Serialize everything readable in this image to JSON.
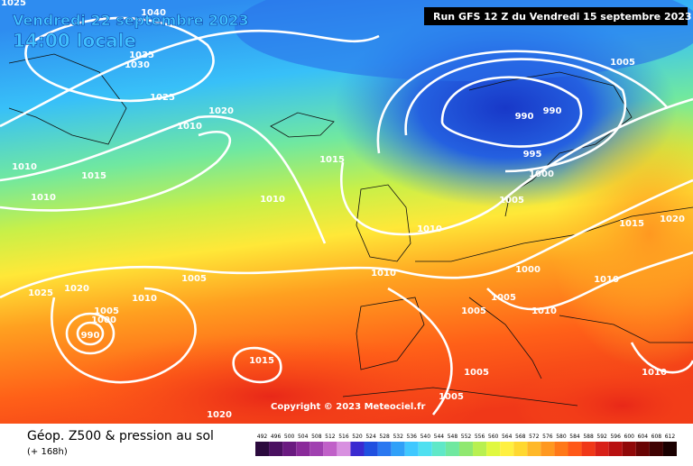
{
  "header": {
    "date": "Vendredi 22 septembre 2023",
    "time": "14:00 locale",
    "run": "Run GFS 12 Z du Vendredi 15 septembre 2023"
  },
  "map": {
    "copyright": "Copyright © 2023 Meteociel.fr",
    "isobar_labels": [
      "1025",
      "1040",
      "1035",
      "1030",
      "1025",
      "1020",
      "1010",
      "1010",
      "1015",
      "1010",
      "1015",
      "1010",
      "1005",
      "990",
      "990",
      "995",
      "1000",
      "1005",
      "1010",
      "1015",
      "1020",
      "1010",
      "1000",
      "1005",
      "1010",
      "1020",
      "1025",
      "1005",
      "1000",
      "990",
      "1005",
      "1010",
      "1010",
      "1005",
      "1015",
      "1005",
      "1005",
      "1010",
      "1020"
    ]
  },
  "footer": {
    "caption": "Géop. Z500 & pression au sol",
    "lead": "(+ 168h)",
    "scale": [
      {
        "value": 492,
        "color": "#2b0a3d"
      },
      {
        "value": 496,
        "color": "#4a1060"
      },
      {
        "value": 500,
        "color": "#6a1a80"
      },
      {
        "value": 504,
        "color": "#8a2a9a"
      },
      {
        "value": 508,
        "color": "#a040b0"
      },
      {
        "value": 512,
        "color": "#c060c8"
      },
      {
        "value": 516,
        "color": "#d890e0"
      },
      {
        "value": 520,
        "color": "#3a2ad0"
      },
      {
        "value": 524,
        "color": "#2050e0"
      },
      {
        "value": 528,
        "color": "#2a78f0"
      },
      {
        "value": 532,
        "color": "#30a0f8"
      },
      {
        "value": 536,
        "color": "#40c8ff"
      },
      {
        "value": 540,
        "color": "#50e0f0"
      },
      {
        "value": 544,
        "color": "#60e8c8"
      },
      {
        "value": 548,
        "color": "#70e8a0"
      },
      {
        "value": 552,
        "color": "#90e870"
      },
      {
        "value": 556,
        "color": "#b8f050"
      },
      {
        "value": 560,
        "color": "#e0f840"
      },
      {
        "value": 564,
        "color": "#fff040"
      },
      {
        "value": 568,
        "color": "#ffd830"
      },
      {
        "value": 572,
        "color": "#ffb828"
      },
      {
        "value": 576,
        "color": "#ff9820"
      },
      {
        "value": 580,
        "color": "#ff7818"
      },
      {
        "value": 584,
        "color": "#ff5818"
      },
      {
        "value": 588,
        "color": "#f03818"
      },
      {
        "value": 592,
        "color": "#d82018"
      },
      {
        "value": 596,
        "color": "#b81010"
      },
      {
        "value": 600,
        "color": "#900808"
      },
      {
        "value": 604,
        "color": "#680404"
      },
      {
        "value": 608,
        "color": "#400202"
      },
      {
        "value": 612,
        "color": "#1a0000"
      }
    ]
  }
}
